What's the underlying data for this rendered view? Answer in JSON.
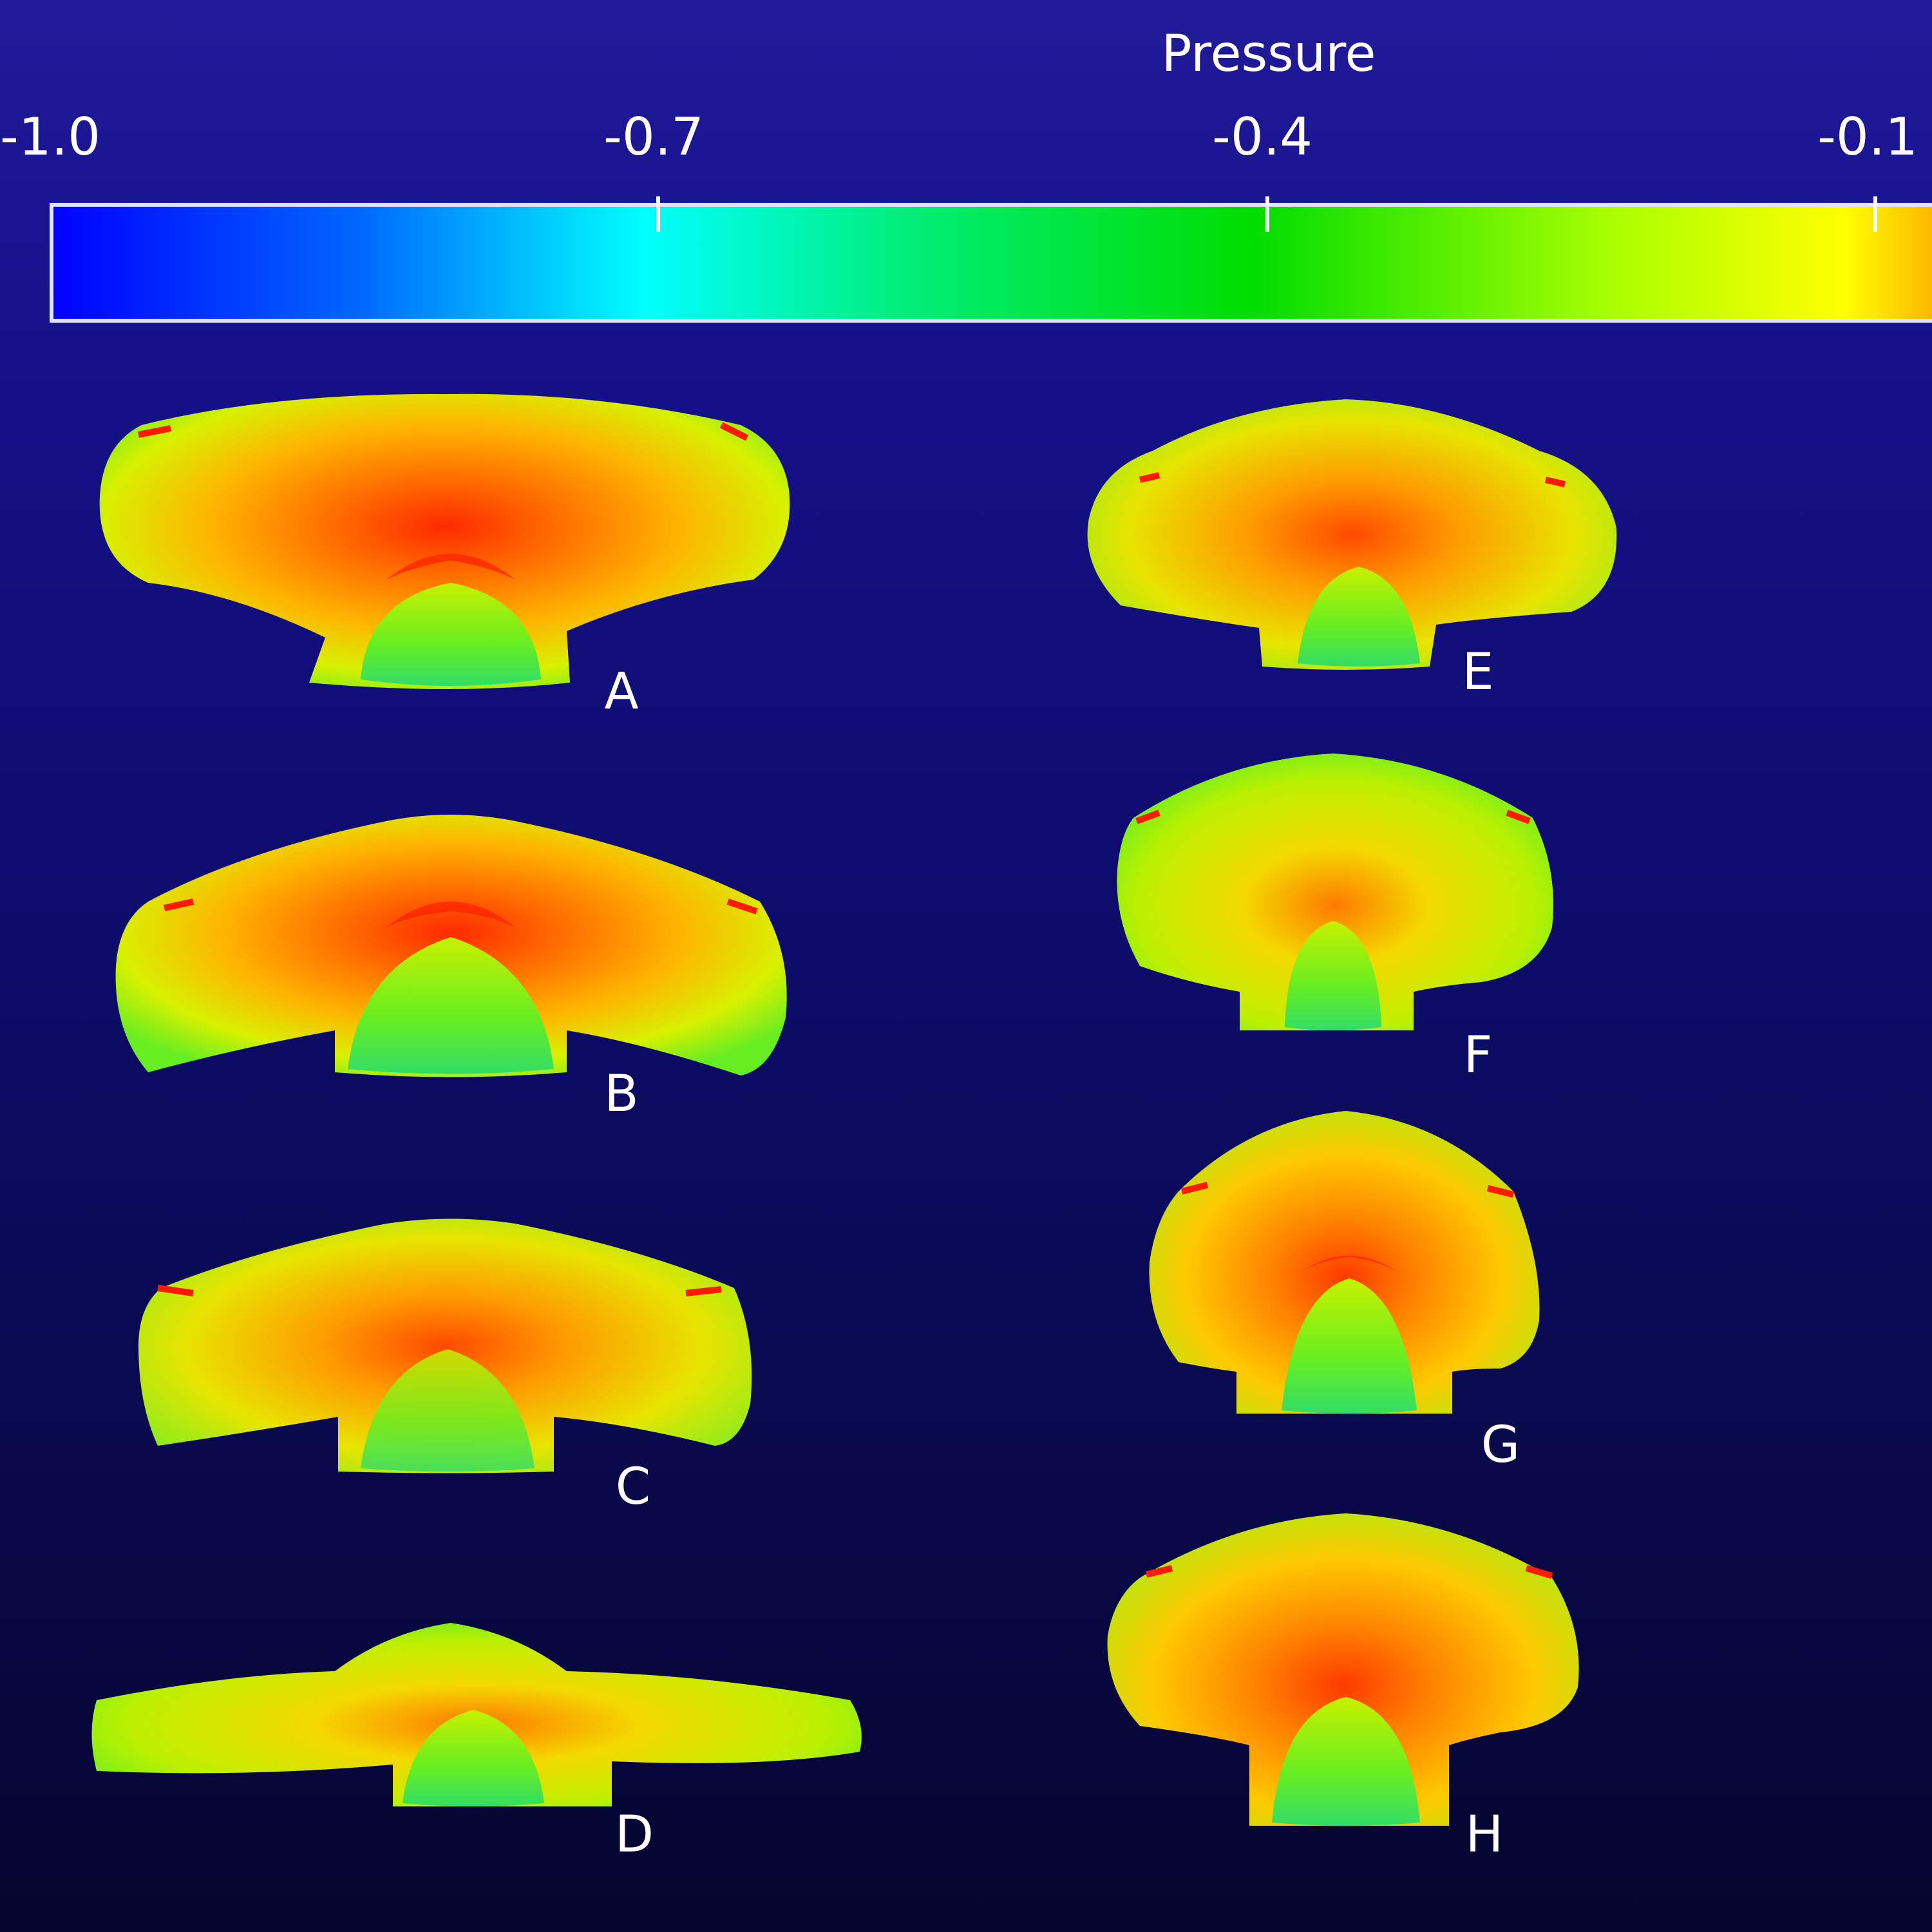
{
  "colorbar": {
    "title": "Pressure",
    "ticks": [
      "-1.0",
      "-0.7",
      "-0.4",
      "-0.1"
    ],
    "colors": [
      "#0000ff",
      "#00aaff",
      "#00ffff",
      "#00ff88",
      "#00dd00",
      "#aaff00",
      "#ffff00",
      "#ffa500"
    ]
  },
  "panels": [
    {
      "label": "A"
    },
    {
      "label": "B"
    },
    {
      "label": "C"
    },
    {
      "label": "D"
    },
    {
      "label": "E"
    },
    {
      "label": "F"
    },
    {
      "label": "G"
    },
    {
      "label": "H"
    }
  ]
}
